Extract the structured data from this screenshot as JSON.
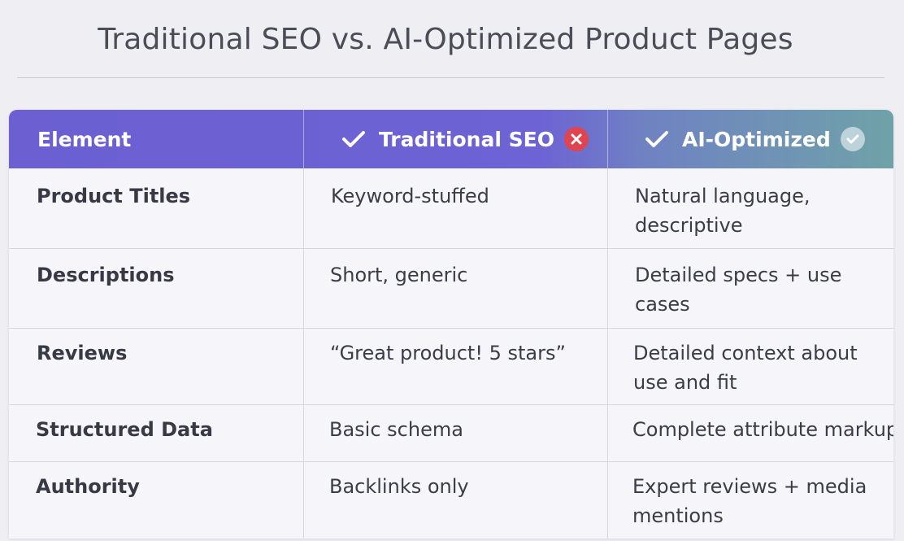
{
  "title": "Traditional SEO vs. AI-Optimized Product Pages",
  "columns": {
    "element": "Element",
    "traditional": "Traditional SEO",
    "ai": "AI-Optimized"
  },
  "colors": {
    "header_left": "#6b5fd1",
    "header_right": "#6fa2a8",
    "bad_badge": "#e0454f"
  },
  "icons": {
    "header_check": "check-icon",
    "traditional_status": "x-circle-icon",
    "ai_status": "check-circle-icon"
  },
  "rows": [
    {
      "element": "Product Titles",
      "traditional": "Keyword-stuffed",
      "ai_line1": "Natural language,",
      "ai_line2": "descriptive"
    },
    {
      "element": "Descriptions",
      "traditional": "Short, generic",
      "ai_line1": "Detailed specs + use",
      "ai_line2": "cases"
    },
    {
      "element": "Reviews",
      "traditional": "“Great product! 5 stars”",
      "ai_line1": "Detailed context about",
      "ai_line2": "use and fit"
    },
    {
      "element": "Structured Data",
      "traditional": "Basic schema",
      "ai_line1": "Complete attribute markup",
      "ai_line2": ""
    },
    {
      "element": "Authority",
      "traditional": "Backlinks only",
      "ai_line1": "Expert reviews + media",
      "ai_line2": "mentions"
    }
  ]
}
